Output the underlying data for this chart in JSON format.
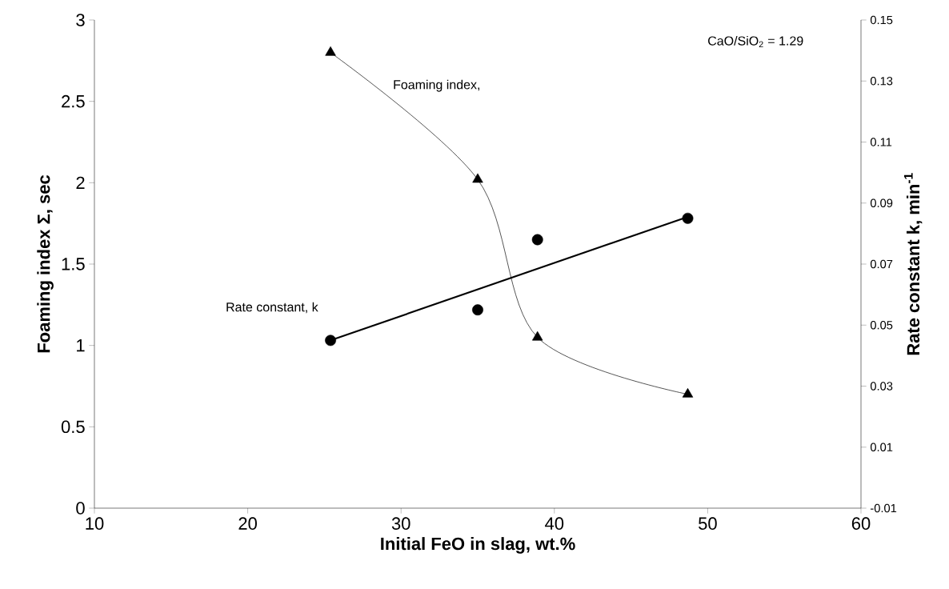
{
  "chart_data": {
    "type": "line",
    "xlabel": "Initial FeO in slag, wt.%",
    "ylabel": "Foaming index Σ, sec",
    "y2label": "Rate constant k, min$^{-1}$",
    "xlim": [
      10,
      60
    ],
    "xticks": [
      10,
      20,
      30,
      40,
      50,
      60
    ],
    "ylim": [
      0,
      3
    ],
    "yticks": [
      0,
      0.5,
      1,
      1.5,
      2,
      2.5,
      3
    ],
    "y2lim": [
      -0.01,
      0.15
    ],
    "y2ticks": [
      -0.01,
      0.01,
      0.03,
      0.05,
      0.07,
      0.09,
      0.11,
      0.13,
      0.15
    ],
    "annotations": [
      "CaO/SiO$_{2}$ = 1.29"
    ],
    "series": [
      {
        "name": "Foaming index,",
        "marker": "triangle",
        "color": "#000000",
        "x": [
          25.4,
          35,
          38.9,
          48.7
        ],
        "values": [
          2.8,
          2.02,
          1.05,
          0.7
        ]
      },
      {
        "name": "Rate constant, k",
        "type": "scatter",
        "axis": "y2",
        "marker": "circle",
        "color": "#000000",
        "x": [
          25.4,
          35,
          38.9,
          48.7
        ],
        "values": [
          0.045,
          0.055,
          0.078,
          0.085
        ]
      },
      {
        "type": "line",
        "axis": "y2",
        "marker": "none",
        "color": "#000000",
        "x": [
          25.4,
          48.7
        ],
        "values": [
          0.045,
          0.0855
        ]
      }
    ]
  }
}
